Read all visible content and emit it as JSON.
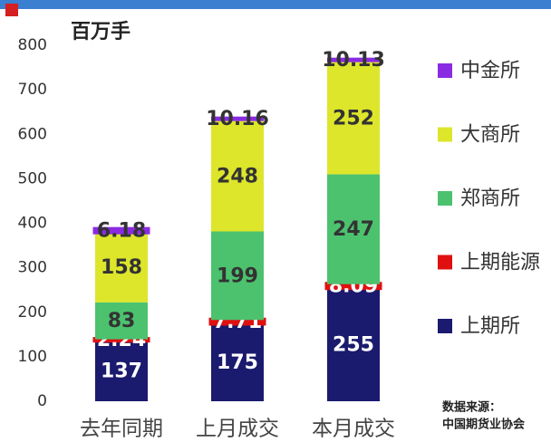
{
  "chart_data": {
    "type": "stacked_bar",
    "y_label": "百万手",
    "source": [
      "数据来源：",
      "中国期货业协会"
    ],
    "categories": [
      "去年同期",
      "上月成交",
      "本月成交"
    ],
    "series": [
      {
        "name": "上期所",
        "color": "#1a1a6e",
        "values": [
          137,
          175,
          255
        ]
      },
      {
        "name": "上期能源",
        "color": "#e01010",
        "values": [
          2.24,
          7.71,
          8.09
        ]
      },
      {
        "name": "郑商所",
        "color": "#4cc26e",
        "values": [
          83,
          199,
          247
        ]
      },
      {
        "name": "大商所",
        "color": "#dde62a",
        "values": [
          158,
          248,
          252
        ]
      },
      {
        "name": "中金所",
        "color": "#8a2be2",
        "values": [
          6.18,
          10.16,
          10.13
        ]
      }
    ],
    "ylim": [
      0,
      800
    ],
    "yticks": [
      0,
      100,
      200,
      300,
      400,
      500,
      600,
      700,
      800
    ],
    "grid": false
  }
}
